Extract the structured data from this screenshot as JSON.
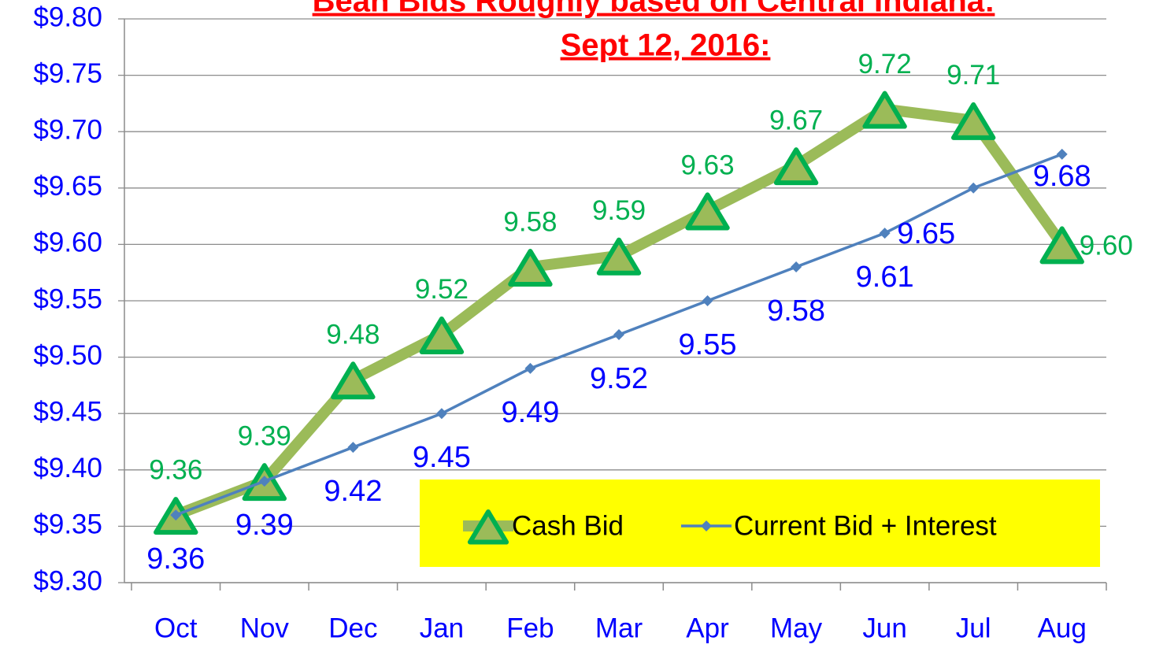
{
  "chart_data": {
    "type": "line",
    "title": "Bean Bids Roughly based on Central Indiana:",
    "subtitle": "Sept 12, 2016:",
    "categories": [
      "Oct",
      "Nov",
      "Dec",
      "Jan",
      "Feb",
      "Mar",
      "Apr",
      "May",
      "Jun",
      "Jul",
      "Aug"
    ],
    "series": [
      {
        "name": "Cash Bid",
        "color": "#9bbb59",
        "marker_color": "#00b050",
        "label_color": "#00b050",
        "values": [
          9.36,
          9.39,
          9.48,
          9.52,
          9.58,
          9.59,
          9.63,
          9.67,
          9.72,
          9.71,
          9.6
        ],
        "value_labels": [
          "9.36",
          "9.39",
          "9.48",
          "9.52",
          "9.58",
          "9.59",
          "9.63",
          "9.67",
          "9.72",
          "9.71",
          "9.60"
        ]
      },
      {
        "name": "Current Bid + Interest",
        "color": "#4f81bd",
        "marker_color": "#4f81bd",
        "label_color": "#0000ff",
        "values": [
          9.36,
          9.39,
          9.42,
          9.45,
          9.49,
          9.52,
          9.55,
          9.58,
          9.61,
          9.65,
          9.68
        ],
        "value_labels": [
          "9.36",
          "9.39",
          "9.42",
          "9.45",
          "9.49",
          "9.52",
          "9.55",
          "9.58",
          "9.61",
          "9.65",
          "9.68"
        ]
      }
    ],
    "ylim": [
      9.3,
      9.8
    ],
    "yticks": [
      {
        "value": 9.3,
        "label": "$9.30"
      },
      {
        "value": 9.35,
        "label": "$9.35"
      },
      {
        "value": 9.4,
        "label": "$9.40"
      },
      {
        "value": 9.45,
        "label": "$9.45"
      },
      {
        "value": 9.5,
        "label": "$9.50"
      },
      {
        "value": 9.55,
        "label": "$9.55"
      },
      {
        "value": 9.6,
        "label": "$9.60"
      },
      {
        "value": 9.65,
        "label": "$9.65"
      },
      {
        "value": 9.7,
        "label": "$9.70"
      },
      {
        "value": 9.75,
        "label": "$9.75"
      },
      {
        "value": 9.8,
        "label": "$9.80"
      }
    ],
    "grid": true,
    "legend": {
      "position": "lower right",
      "background": "#ffff00"
    }
  }
}
